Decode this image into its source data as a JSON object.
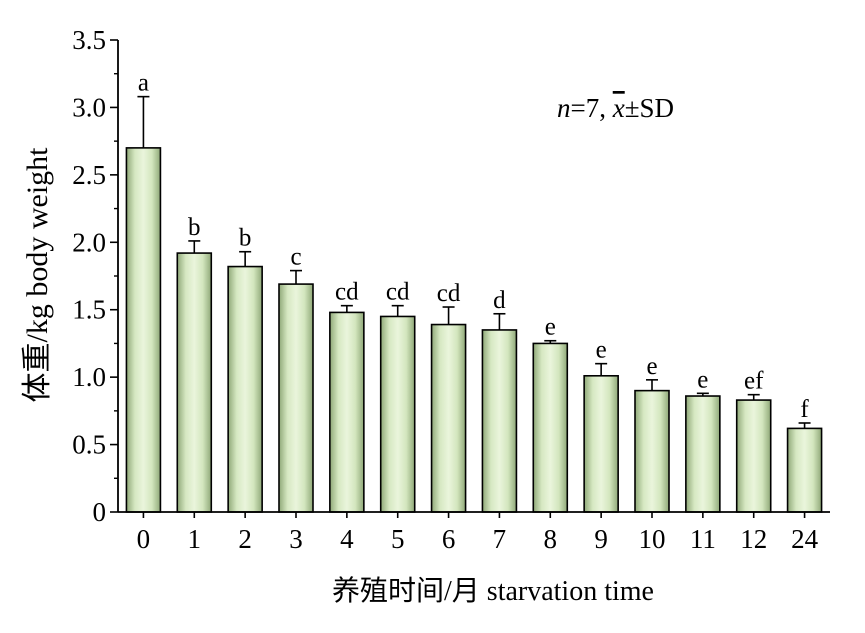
{
  "chart_data": {
    "type": "bar",
    "categories": [
      "0",
      "1",
      "2",
      "3",
      "4",
      "5",
      "6",
      "7",
      "8",
      "9",
      "10",
      "11",
      "12",
      "24"
    ],
    "values": [
      2.7,
      1.92,
      1.82,
      1.69,
      1.48,
      1.45,
      1.39,
      1.35,
      1.25,
      1.01,
      0.9,
      0.86,
      0.83,
      0.62
    ],
    "errors": [
      0.38,
      0.09,
      0.11,
      0.1,
      0.05,
      0.08,
      0.13,
      0.12,
      0.02,
      0.09,
      0.08,
      0.02,
      0.04,
      0.04
    ],
    "significance_letters": [
      "a",
      "b",
      "b",
      "c",
      "cd",
      "cd",
      "cd",
      "d",
      "e",
      "e",
      "e",
      "e",
      "ef",
      "f"
    ],
    "yticks": [
      "0",
      "0.5",
      "1.0",
      "1.5",
      "2.0",
      "2.5",
      "3.0",
      "3.5"
    ],
    "ylim": [
      0,
      3.5
    ],
    "xlabel": "养殖时间/月 starvation time",
    "ylabel": "体重/kg  body weight",
    "annotation": {
      "n_italic": "n",
      "n_rest": "=7, ",
      "xbar": "x",
      "rest": "±SD"
    },
    "bar_color": "#c8dfb0",
    "grid": false
  }
}
